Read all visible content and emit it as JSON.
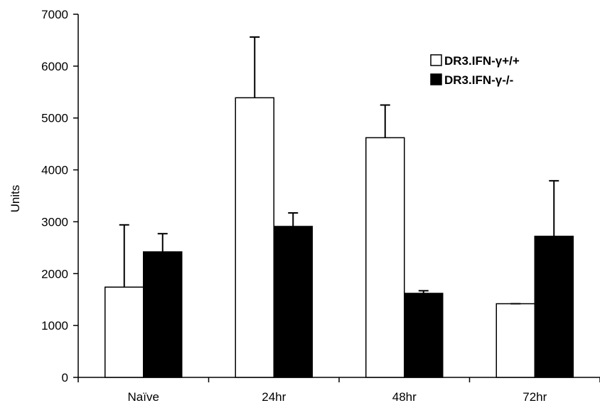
{
  "chart_data": {
    "type": "bar",
    "title": "",
    "xlabel": "",
    "ylabel": "Units",
    "ylim": [
      0,
      7000
    ],
    "yticks": [
      0,
      1000,
      2000,
      3000,
      4000,
      5000,
      6000,
      7000
    ],
    "categories": [
      "Naïve",
      "24hr",
      "48hr",
      "72hr"
    ],
    "series": [
      {
        "name": "DR3.IFN-γ+/+",
        "fill": "#ffffff",
        "values": [
          1740,
          5390,
          4620,
          1420
        ],
        "error": [
          1200,
          1170,
          630,
          0
        ]
      },
      {
        "name": "DR3.IFN-γ-/-",
        "fill": "#000000",
        "values": [
          2420,
          2910,
          1620,
          2720
        ],
        "error": [
          350,
          260,
          50,
          1070
        ]
      }
    ],
    "legend_position": "top-right",
    "grid": false
  }
}
